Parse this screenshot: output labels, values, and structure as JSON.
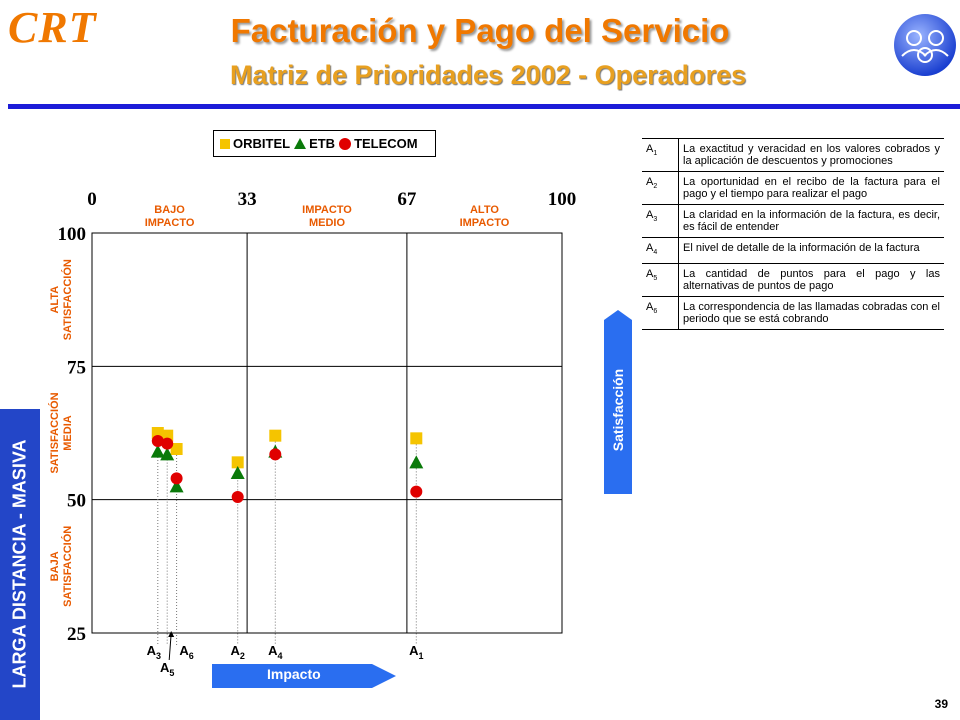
{
  "header": {
    "logo_text": "CRT",
    "title": "Facturación y Pago del Servicio",
    "subtitle": "Matriz de Prioridades 2002  - Operadores",
    "globe_icon": "globe-people-icon"
  },
  "side_label": "LARGA DISTANCIA - MASIVA",
  "arrows": {
    "satisfaction": "Satisfacción",
    "impact": "Impacto"
  },
  "page_number": "39",
  "colors": {
    "title": "#f07800",
    "blue": "#2346c8",
    "orbitel": "#f5c400",
    "etb": "#0a7a0a",
    "telecom": "#e00000"
  },
  "chart_data": {
    "type": "scatter",
    "xlim": [
      0,
      100
    ],
    "ylim": [
      25,
      100
    ],
    "x_ticks": [
      "0",
      "33",
      "67",
      "100"
    ],
    "y_ticks": [
      "100",
      "75",
      "50",
      "25"
    ],
    "x_zones": [
      "BAJO IMPACTO",
      "IMPACTO MEDIO",
      "ALTO IMPACTO"
    ],
    "y_zones": [
      "ALTA SATISFACCIÓN",
      "SATISFACCIÓN MEDIA",
      "BAJA SATISFACCIÓN"
    ],
    "legend": [
      "ORBITEL",
      "ETB",
      "TELECOM"
    ],
    "series": [
      {
        "name": "ORBITEL",
        "marker": "square",
        "points": [
          {
            "x": 14,
            "y": 62.5
          },
          {
            "x": 16,
            "y": 62
          },
          {
            "x": 18,
            "y": 59.5
          },
          {
            "x": 31,
            "y": 57
          },
          {
            "x": 39,
            "y": 62
          },
          {
            "x": 69,
            "y": 61.5
          }
        ]
      },
      {
        "name": "ETB",
        "marker": "triangle",
        "points": [
          {
            "x": 14,
            "y": 59
          },
          {
            "x": 16,
            "y": 58.5
          },
          {
            "x": 18,
            "y": 52.5
          },
          {
            "x": 31,
            "y": 55
          },
          {
            "x": 39,
            "y": 59
          },
          {
            "x": 69,
            "y": 57
          }
        ]
      },
      {
        "name": "TELECOM",
        "marker": "circle",
        "points": [
          {
            "x": 14,
            "y": 61
          },
          {
            "x": 16,
            "y": 60.5
          },
          {
            "x": 18,
            "y": 54
          },
          {
            "x": 31,
            "y": 50.5
          },
          {
            "x": 39,
            "y": 58.5
          },
          {
            "x": 69,
            "y": 51.5
          }
        ]
      }
    ],
    "point_labels": [
      {
        "id": "3",
        "x": 14
      },
      {
        "id": "5",
        "x": 16
      },
      {
        "id": "6",
        "x": 18
      },
      {
        "id": "2",
        "x": 31
      },
      {
        "id": "4",
        "x": 39
      },
      {
        "id": "1",
        "x": 69
      }
    ],
    "label_prefix": "A"
  },
  "descriptions": [
    {
      "code": "A",
      "sub": "1",
      "text": "La exactitud y veracidad en los valores cobrados y la aplicación de descuentos y promociones"
    },
    {
      "code": "A",
      "sub": "2",
      "text": "La oportunidad en el recibo de la factura para el pago y el tiempo para realizar el pago"
    },
    {
      "code": "A",
      "sub": "3",
      "text": "La claridad en la información de la factura, es decir, es fácil de entender"
    },
    {
      "code": "A",
      "sub": "4",
      "text": "El nivel de detalle de la información de la factura"
    },
    {
      "code": "A",
      "sub": "5",
      "text": "La cantidad  de puntos para el pago y las alternativas de puntos de pago"
    },
    {
      "code": "A",
      "sub": "6",
      "text": "La correspondencia de las llamadas cobradas con el periodo que se está cobrando"
    }
  ]
}
